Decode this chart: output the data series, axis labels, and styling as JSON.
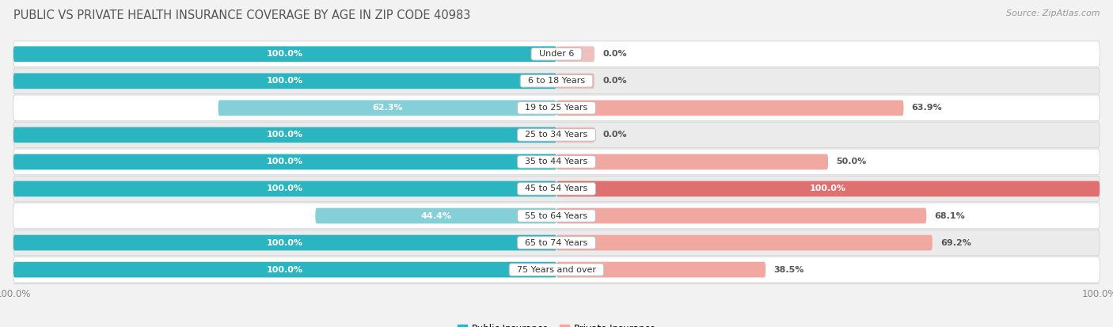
{
  "title": "PUBLIC VS PRIVATE HEALTH INSURANCE COVERAGE BY AGE IN ZIP CODE 40983",
  "source": "Source: ZipAtlas.com",
  "categories": [
    "Under 6",
    "6 to 18 Years",
    "19 to 25 Years",
    "25 to 34 Years",
    "35 to 44 Years",
    "45 to 54 Years",
    "55 to 64 Years",
    "65 to 74 Years",
    "75 Years and over"
  ],
  "public_values": [
    100.0,
    100.0,
    62.3,
    100.0,
    100.0,
    100.0,
    44.4,
    100.0,
    100.0
  ],
  "private_values": [
    0.0,
    0.0,
    63.9,
    0.0,
    50.0,
    100.0,
    68.1,
    69.2,
    38.5
  ],
  "public_color_full": "#2bb5c0",
  "public_color_partial": "#85d0d8",
  "private_color_full": "#e07070",
  "private_color_partial": "#f0a8a0",
  "private_color_zero": "#f0c0bc",
  "bar_height": 0.58,
  "background_color": "#f2f2f2",
  "row_bg_even": "#ffffff",
  "row_bg_odd": "#ebebeb",
  "xlim_left": -100,
  "xlim_right": 100,
  "title_fontsize": 10.5,
  "source_fontsize": 8,
  "label_fontsize": 8,
  "value_fontsize": 8,
  "tick_fontsize": 8.5
}
